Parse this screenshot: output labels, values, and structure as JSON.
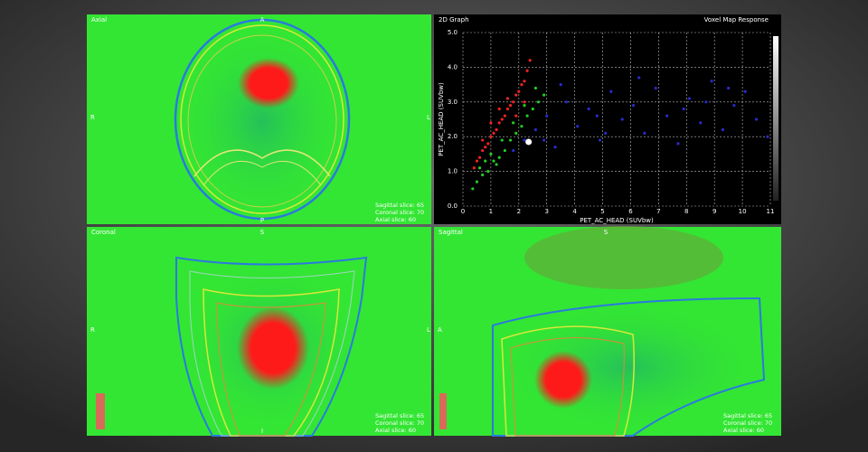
{
  "panels": {
    "axial": {
      "title": "Axial",
      "top": "A",
      "bottom": "P",
      "left": "R",
      "right": "L",
      "slices": [
        "Sagittal slice: 65",
        "Coronal slice: 70",
        "Axial slice: 60"
      ]
    },
    "coronal": {
      "title": "Coronal",
      "top": "S",
      "bottom": "I",
      "left": "R",
      "right": "L",
      "slices": [
        "Sagittal slice: 65",
        "Coronal slice: 70",
        "Axial slice: 60"
      ]
    },
    "sagittal": {
      "title": "Sagittal",
      "top": "S",
      "left": "A",
      "slices": [
        "Sagittal slice: 65",
        "Coronal slice: 70",
        "Axial slice: 60"
      ]
    }
  },
  "chart_data": {
    "type": "scatter",
    "title": "2D Graph",
    "subtitle": "Voxel Map Response",
    "x_label": "PET_AC_HEAD (SUVbw)",
    "y_label": "PET_AC_HEAD (SUVbw)",
    "xlim": [
      0,
      11
    ],
    "xticks": [
      0,
      1,
      2,
      3,
      4,
      5,
      6,
      7,
      8,
      9,
      10,
      11
    ],
    "ylim": [
      0,
      5
    ],
    "yticks": [
      {
        "value": 0,
        "label": "0.0"
      },
      {
        "value": 1,
        "label": "1.0"
      },
      {
        "value": 2,
        "label": "2.0"
      },
      {
        "value": 3,
        "label": "3.0"
      },
      {
        "value": 4,
        "label": "4.0"
      },
      {
        "value": 5,
        "label": "5.0"
      }
    ],
    "grid": true,
    "series": [
      {
        "color": "#2a2acc",
        "x": [
          1.8,
          2.2,
          2.6,
          3.0,
          3.3,
          3.7,
          4.1,
          4.5,
          4.9,
          5.3,
          5.7,
          6.1,
          6.5,
          6.9,
          7.3,
          7.7,
          8.1,
          8.5,
          8.9,
          9.3,
          9.7,
          10.1,
          10.5,
          10.9,
          3.5,
          4.8,
          6.3,
          7.9,
          9.5,
          2.9,
          5.1,
          8.7
        ],
        "values": [
          1.6,
          1.9,
          2.2,
          2.6,
          1.7,
          3.0,
          2.3,
          2.8,
          1.9,
          3.3,
          2.5,
          2.9,
          2.1,
          3.4,
          2.6,
          1.8,
          3.1,
          2.4,
          3.6,
          2.2,
          2.9,
          3.3,
          2.5,
          2.0,
          3.5,
          2.6,
          3.7,
          2.8,
          3.4,
          1.9,
          2.1,
          3.0
        ]
      },
      {
        "color": "#22cc22",
        "x": [
          0.35,
          0.5,
          0.7,
          0.9,
          1.1,
          1.3,
          1.5,
          1.7,
          1.9,
          2.1,
          2.3,
          2.5,
          2.7,
          2.9,
          0.6,
          1.0,
          1.4,
          1.8,
          2.2,
          2.6,
          0.8,
          1.2
        ],
        "values": [
          0.5,
          0.7,
          0.9,
          1.0,
          1.3,
          1.4,
          1.6,
          1.9,
          2.1,
          2.3,
          2.6,
          2.8,
          3.0,
          3.2,
          1.1,
          1.5,
          1.9,
          2.4,
          2.9,
          3.4,
          1.3,
          1.2
        ]
      },
      {
        "color": "#ee2222",
        "x": [
          0.4,
          0.5,
          0.6,
          0.7,
          0.8,
          0.9,
          1.0,
          1.1,
          1.2,
          1.3,
          1.4,
          1.5,
          1.6,
          1.7,
          1.8,
          1.9,
          2.0,
          2.1,
          2.2,
          2.3,
          2.4,
          0.7,
          1.0,
          1.3,
          1.6,
          1.9,
          2.2
        ],
        "values": [
          1.1,
          1.3,
          1.4,
          1.6,
          1.7,
          1.8,
          2.0,
          2.1,
          2.2,
          2.4,
          2.5,
          2.6,
          2.8,
          2.9,
          3.0,
          3.2,
          3.3,
          3.5,
          3.6,
          3.9,
          4.2,
          1.9,
          2.4,
          2.8,
          3.1,
          2.6,
          3.0
        ]
      }
    ],
    "highlight": {
      "x": 2.35,
      "y": 1.85,
      "color": "#ffffff"
    }
  }
}
